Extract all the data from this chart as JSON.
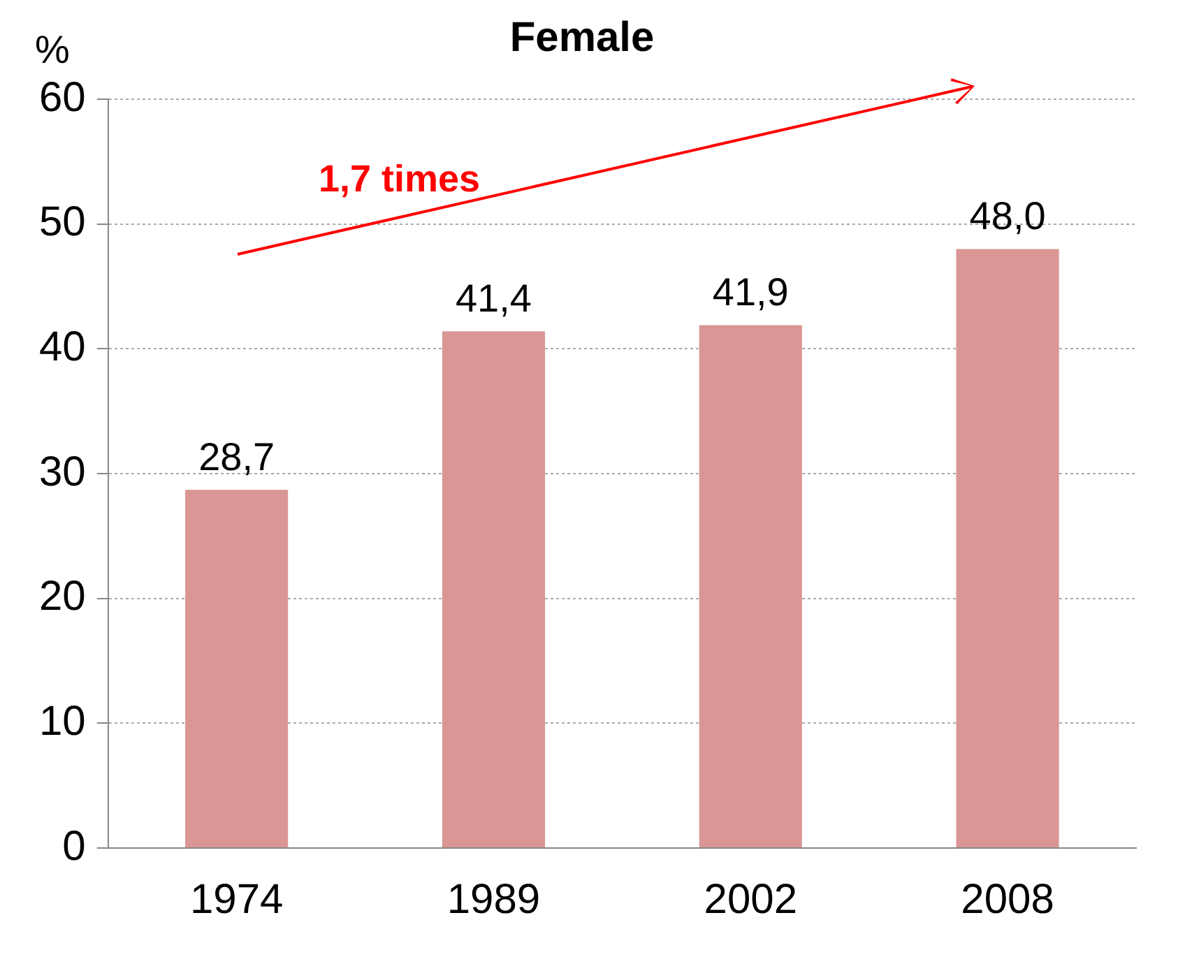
{
  "chart_data": {
    "type": "bar",
    "title": "Female",
    "ylabel": "%",
    "categories": [
      "1974",
      "1989",
      "2002",
      "2008"
    ],
    "values": [
      28.7,
      41.4,
      41.9,
      48.0
    ],
    "color": "#d99694",
    "value_labels": [
      "28,7",
      "41,4",
      "41,9",
      "48,0"
    ],
    "ylim": [
      0,
      60
    ],
    "yticks": [
      0,
      10,
      20,
      30,
      40,
      50,
      60
    ],
    "grid": "y",
    "annotations": [
      "1,7 times"
    ]
  }
}
